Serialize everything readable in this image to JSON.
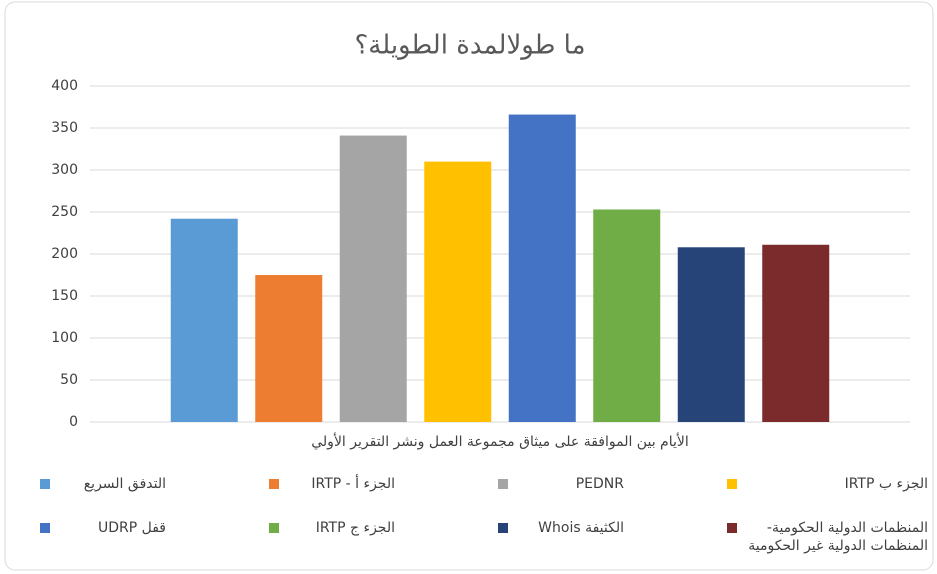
{
  "chart_data": {
    "type": "bar",
    "title": "ما طولالمدة الطويلة؟",
    "categories": [
      "الأيام بين الموافقة على ميثاق مجموعة العمل ونشر التقرير الأولي"
    ],
    "series": [
      {
        "name": "التدفق السريع",
        "color": "#5b9bd5",
        "values": [
          242
        ]
      },
      {
        "name": "الجزء أ - IRTP",
        "color": "#ed7d31",
        "values": [
          175
        ]
      },
      {
        "name": "PEDNR",
        "color": "#a5a5a5",
        "values": [
          341
        ]
      },
      {
        "name": "الجزء ب IRTP",
        "color": "#ffc000",
        "values": [
          310
        ]
      },
      {
        "name": "قفل UDRP",
        "color": "#4472c4",
        "values": [
          366
        ]
      },
      {
        "name": "الجزء ج IRTP",
        "color": "#70ad47",
        "values": [
          253
        ]
      },
      {
        "name": "الكثيفة Whois",
        "color": "#264478",
        "values": [
          208
        ]
      },
      {
        "name": "المنظمات الدولية الحكومية- المنظمات الدولية غير الحكومية",
        "color": "#7b2b2b",
        "values": [
          211
        ]
      }
    ],
    "ylim": [
      0,
      400
    ],
    "yticks": [
      0,
      50,
      100,
      150,
      200,
      250,
      300,
      350,
      400
    ],
    "grid": true
  }
}
